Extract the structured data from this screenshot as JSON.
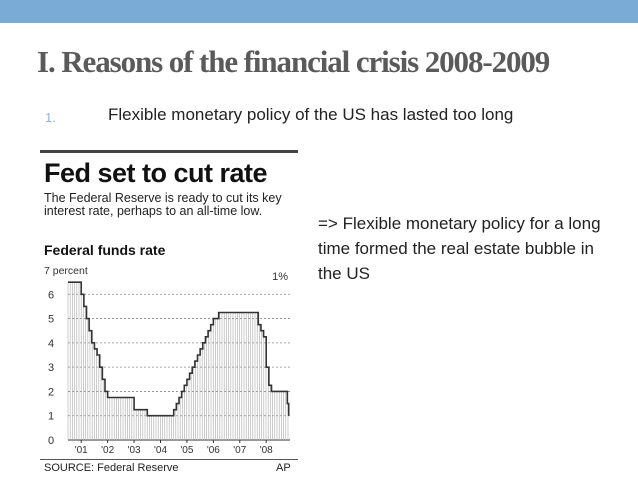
{
  "slide": {
    "title": "I. Reasons of the financial crisis 2008-2009",
    "bullet_number": "1.",
    "bullet_text": "Flexible monetary policy of the US has lasted too long",
    "note": "=> Flexible monetary policy for a long time formed the real estate bubble in the US"
  },
  "colors": {
    "top_bar": "#7aaad6",
    "title": "#5a5a5a",
    "bullet_number": "#8fb3d9",
    "chart_line": "#333333"
  },
  "chart_data": {
    "type": "line",
    "title": "Fed set to cut rate",
    "description": "The Federal Reserve is ready to cut its key interest rate, perhaps to an all-time low.",
    "subtitle": "Federal funds rate",
    "y_top_label": "7 percent",
    "annotation": "1%",
    "source": "SOURCE: Federal Reserve",
    "credit": "AP",
    "ylim": [
      0,
      7
    ],
    "yticks": [
      0,
      1,
      2,
      3,
      4,
      5,
      6
    ],
    "xlim": [
      2000.5,
      2008.9
    ],
    "xticks": [
      {
        "label": "'01",
        "x": 2001.0
      },
      {
        "label": "'02",
        "x": 2002.0
      },
      {
        "label": "'03",
        "x": 2003.0
      },
      {
        "label": "'04",
        "x": 2004.0
      },
      {
        "label": "'05",
        "x": 2005.0
      },
      {
        "label": "'06",
        "x": 2006.0
      },
      {
        "label": "'07",
        "x": 2007.0
      },
      {
        "label": "'08",
        "x": 2008.0
      }
    ],
    "series": [
      {
        "x": [
          2000.5,
          2000.9,
          2001.0,
          2001.1,
          2001.2,
          2001.3,
          2001.4,
          2001.5,
          2001.6,
          2001.7,
          2001.8,
          2001.9,
          2002.0,
          2002.9,
          2003.0,
          2003.4,
          2003.5,
          2004.4,
          2004.5,
          2004.6,
          2004.7,
          2004.8,
          2004.9,
          2005.0,
          2005.1,
          2005.2,
          2005.3,
          2005.4,
          2005.5,
          2005.6,
          2005.7,
          2005.8,
          2005.9,
          2006.0,
          2006.1,
          2006.2,
          2006.3,
          2006.4,
          2006.5,
          2007.6,
          2007.7,
          2007.8,
          2007.9,
          2008.0,
          2008.1,
          2008.2,
          2008.3,
          2008.8,
          2008.85
        ],
        "y": [
          6.5,
          6.5,
          6.0,
          5.5,
          5.0,
          4.5,
          4.0,
          3.75,
          3.5,
          3.0,
          2.5,
          2.0,
          1.75,
          1.75,
          1.25,
          1.25,
          1.0,
          1.0,
          1.25,
          1.5,
          1.75,
          2.0,
          2.25,
          2.5,
          2.75,
          3.0,
          3.25,
          3.5,
          3.75,
          4.0,
          4.25,
          4.5,
          4.75,
          5.0,
          5.0,
          5.25,
          5.25,
          5.25,
          5.25,
          5.25,
          4.75,
          4.5,
          4.25,
          3.0,
          2.25,
          2.0,
          2.0,
          1.5,
          1.0
        ]
      }
    ]
  }
}
